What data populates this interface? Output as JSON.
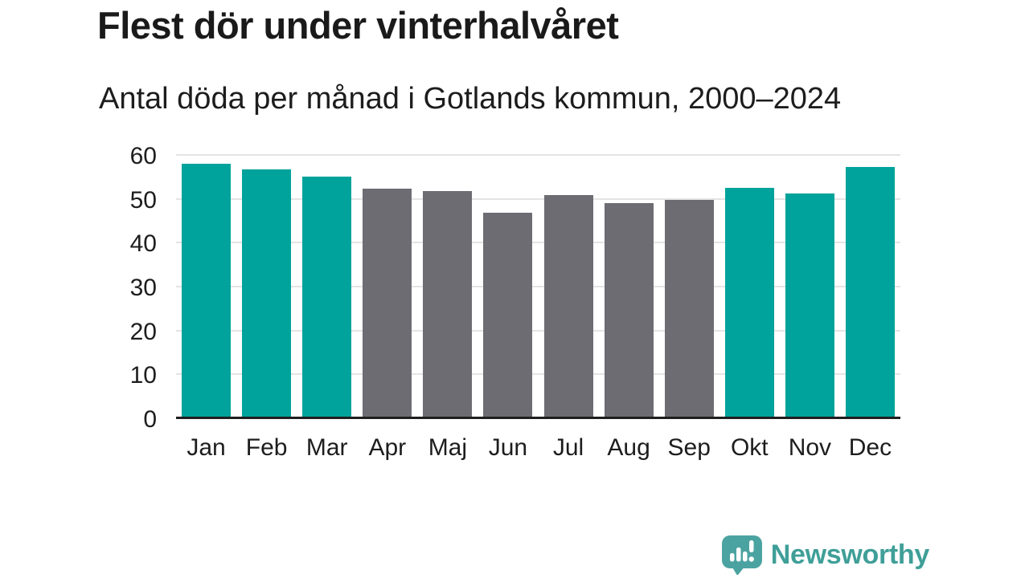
{
  "header": {
    "title": "Flest dör under vinterhalvåret",
    "subtitle": "Antal döda per månad i Gotlands kommun, 2000–2024"
  },
  "chart_data": {
    "type": "bar",
    "title": "Flest dör under vinterhalvåret",
    "subtitle": "Antal döda per månad i Gotlands kommun, 2000–2024",
    "categories": [
      "Jan",
      "Feb",
      "Mar",
      "Apr",
      "Maj",
      "Jun",
      "Jul",
      "Aug",
      "Sep",
      "Okt",
      "Nov",
      "Dec"
    ],
    "values": [
      57.8,
      56.5,
      54.9,
      52.2,
      51.6,
      46.6,
      50.6,
      48.9,
      49.6,
      52.4,
      51.0,
      57.1
    ],
    "bar_colors": [
      "#00a39b",
      "#00a39b",
      "#00a39b",
      "#6d6c72",
      "#6d6c72",
      "#6d6c72",
      "#6d6c72",
      "#6d6c72",
      "#6d6c72",
      "#00a39b",
      "#00a39b",
      "#00a39b"
    ],
    "highlight_color": "#00a39b",
    "muted_color": "#6d6c72",
    "xlabel": "",
    "ylabel": "",
    "ylim": [
      0,
      60
    ],
    "yticks": [
      0,
      10,
      20,
      30,
      40,
      50,
      60
    ],
    "grid": "horizontal",
    "gridline_color": "#e4e4e5",
    "axis_line_color": "#1f1f1f",
    "legend": "none"
  },
  "footer": {
    "logo_text": "Newsworthy",
    "logo_icon": "newsworthy-speech-bubble-chart-icon",
    "logo_text_color": "#3f9f98",
    "logo_icon_color": "#4ba3a1"
  }
}
